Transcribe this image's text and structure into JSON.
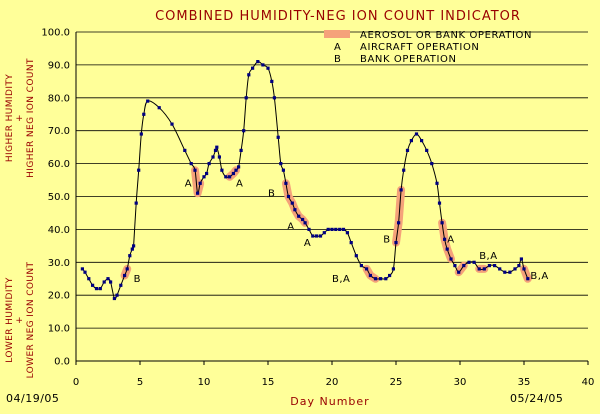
{
  "chart_data": {
    "type": "scatter",
    "title": "COMBINED HUMIDITY-NEG ION COUNT INDICATOR",
    "xlabel": "Day Number",
    "ylabel_top": [
      "HIGHER HUMIDITY",
      "+",
      "HIGHER NEG ION COUNT"
    ],
    "ylabel_bottom": [
      "LOWER HUMIDITY",
      "+",
      "LOWER NEG ION COUNT"
    ],
    "date_start": "04/19/05",
    "date_end": "05/24/05",
    "xlim": [
      0,
      40
    ],
    "ylim": [
      0,
      100
    ],
    "x_ticks": [
      "0",
      "5",
      "10",
      "15",
      "20",
      "25",
      "30",
      "35",
      "40"
    ],
    "y_ticks": [
      "0.0",
      "10.0",
      "20.0",
      "30.0",
      "40.0",
      "50.0",
      "60.0",
      "70.0",
      "80.0",
      "90.0",
      "100.0"
    ],
    "grid": "horizontal",
    "legend_position": "top-right",
    "legend": [
      {
        "marker": "bar",
        "text": "Aerosol or bank operation"
      },
      {
        "marker": "A",
        "text": "aircraft operation"
      },
      {
        "marker": "B",
        "text": "bank operation"
      }
    ],
    "colors": {
      "background": "#ffff99",
      "series": "#000080",
      "highlight": "#f5a27a",
      "title": "#990000"
    },
    "series": [
      {
        "points": [
          [
            0.5,
            28
          ],
          [
            0.7,
            27
          ],
          [
            1.0,
            25
          ],
          [
            1.3,
            23
          ],
          [
            1.6,
            22
          ],
          [
            1.9,
            22
          ],
          [
            2.2,
            24
          ],
          [
            2.5,
            25
          ],
          [
            2.7,
            24
          ],
          [
            3.0,
            19
          ],
          [
            3.2,
            20
          ],
          [
            3.5,
            23
          ],
          [
            3.8,
            26
          ],
          [
            4.0,
            28
          ],
          [
            4.2,
            32
          ],
          [
            4.4,
            34
          ],
          [
            4.5,
            35
          ],
          [
            4.7,
            48
          ],
          [
            4.9,
            58
          ],
          [
            5.1,
            69
          ],
          [
            5.3,
            75
          ],
          [
            5.6,
            79
          ],
          [
            6.5,
            77
          ],
          [
            7.5,
            72
          ],
          [
            8.5,
            64
          ],
          [
            9.0,
            60
          ],
          [
            9.3,
            58
          ],
          [
            9.5,
            51
          ],
          [
            9.7,
            54
          ],
          [
            10.0,
            56
          ],
          [
            10.2,
            57
          ],
          [
            10.4,
            60
          ],
          [
            10.7,
            62
          ],
          [
            10.9,
            64
          ],
          [
            11.0,
            65
          ],
          [
            11.2,
            62
          ],
          [
            11.4,
            58
          ],
          [
            11.7,
            56
          ],
          [
            12.0,
            56
          ],
          [
            12.3,
            57
          ],
          [
            12.5,
            58
          ],
          [
            12.7,
            59
          ],
          [
            12.9,
            64
          ],
          [
            13.1,
            70
          ],
          [
            13.3,
            80
          ],
          [
            13.5,
            87
          ],
          [
            13.8,
            89
          ],
          [
            14.2,
            91
          ],
          [
            14.6,
            90
          ],
          [
            15.0,
            89
          ],
          [
            15.3,
            85
          ],
          [
            15.5,
            80
          ],
          [
            15.8,
            68
          ],
          [
            16.0,
            60
          ],
          [
            16.2,
            58
          ],
          [
            16.4,
            54
          ],
          [
            16.6,
            50
          ],
          [
            16.9,
            48
          ],
          [
            17.1,
            46
          ],
          [
            17.4,
            44
          ],
          [
            17.7,
            43
          ],
          [
            17.9,
            42
          ],
          [
            18.2,
            40
          ],
          [
            18.5,
            38
          ],
          [
            18.8,
            38
          ],
          [
            19.1,
            38
          ],
          [
            19.4,
            39
          ],
          [
            19.7,
            40
          ],
          [
            20.0,
            40
          ],
          [
            20.3,
            40
          ],
          [
            20.6,
            40
          ],
          [
            20.9,
            40
          ],
          [
            21.2,
            39
          ],
          [
            21.5,
            36
          ],
          [
            21.9,
            32
          ],
          [
            22.3,
            29
          ],
          [
            22.7,
            28
          ],
          [
            23.0,
            26
          ],
          [
            23.4,
            25
          ],
          [
            23.8,
            25
          ],
          [
            24.2,
            25
          ],
          [
            24.5,
            26
          ],
          [
            24.8,
            28
          ],
          [
            25.0,
            36
          ],
          [
            25.2,
            42
          ],
          [
            25.4,
            52
          ],
          [
            25.6,
            58
          ],
          [
            25.9,
            64
          ],
          [
            26.2,
            67
          ],
          [
            26.6,
            69
          ],
          [
            27.0,
            67
          ],
          [
            27.4,
            64
          ],
          [
            27.8,
            60
          ],
          [
            28.2,
            54
          ],
          [
            28.4,
            48
          ],
          [
            28.6,
            42
          ],
          [
            28.8,
            37
          ],
          [
            29.0,
            34
          ],
          [
            29.3,
            31
          ],
          [
            29.6,
            29
          ],
          [
            29.9,
            27
          ],
          [
            30.3,
            29
          ],
          [
            30.7,
            30
          ],
          [
            31.1,
            30
          ],
          [
            31.5,
            28
          ],
          [
            31.9,
            28
          ],
          [
            32.3,
            29
          ],
          [
            32.7,
            29
          ],
          [
            33.1,
            28
          ],
          [
            33.5,
            27
          ],
          [
            33.9,
            27
          ],
          [
            34.3,
            28
          ],
          [
            34.6,
            29
          ],
          [
            34.8,
            31
          ],
          [
            35.0,
            28
          ],
          [
            35.3,
            25
          ]
        ]
      }
    ],
    "highlight_segments": [
      [
        3.6,
        4.1
      ],
      [
        9.3,
        9.8
      ],
      [
        11.9,
        12.6
      ],
      [
        16.4,
        17.9
      ],
      [
        22.4,
        23.4
      ],
      [
        24.9,
        25.4
      ],
      [
        28.5,
        29.4
      ],
      [
        29.9,
        30.3
      ],
      [
        31.4,
        31.9
      ],
      [
        34.9,
        35.4
      ]
    ],
    "annotations": [
      {
        "text": "B",
        "x": 4.5,
        "y": 24
      },
      {
        "text": "A",
        "x": 8.5,
        "y": 53
      },
      {
        "text": "A",
        "x": 12.5,
        "y": 53
      },
      {
        "text": "B",
        "x": 15.0,
        "y": 50
      },
      {
        "text": "A",
        "x": 16.5,
        "y": 40
      },
      {
        "text": "A",
        "x": 17.8,
        "y": 35
      },
      {
        "text": "B",
        "x": 24.0,
        "y": 36
      },
      {
        "text": "A",
        "x": 29.0,
        "y": 36
      },
      {
        "text": "B,A",
        "x": 20.0,
        "y": 24
      },
      {
        "text": "B,A",
        "x": 31.5,
        "y": 31
      },
      {
        "text": "B,A",
        "x": 35.5,
        "y": 25
      }
    ]
  }
}
